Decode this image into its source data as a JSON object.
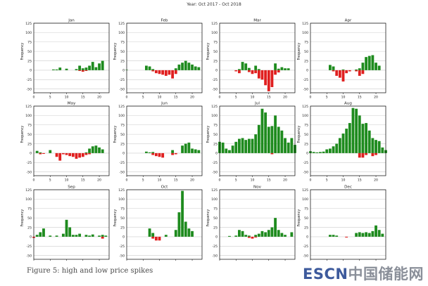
{
  "suptitle": "Year: Oct 2017 - Oct 2018",
  "caption": "Figure 5: high and low price spikes",
  "watermark": {
    "latin": "ESCN",
    "cjk": "中国储能网"
  },
  "colors": {
    "high": "#1e8b1e",
    "low": "#e01f1f",
    "grid": "#cccccc",
    "axis": "#000000"
  },
  "chart_data": [
    {
      "type": "bar",
      "title": "Jan",
      "ylabel": "Frequency",
      "xlabel": "",
      "xlim": [
        0,
        23
      ],
      "ylim": [
        -60,
        125
      ],
      "xticks": [
        0,
        5,
        10,
        15,
        20
      ],
      "yticks": [
        125,
        100,
        75,
        50,
        25,
        0,
        -25,
        -50
      ],
      "series": [
        {
          "name": "high",
          "x": [
            6,
            7,
            8,
            10,
            13,
            14,
            15,
            16,
            17,
            18,
            19,
            20,
            21
          ],
          "values": [
            2,
            2,
            7,
            4,
            3,
            12,
            5,
            7,
            12,
            22,
            8,
            18,
            25
          ]
        },
        {
          "name": "low",
          "x": [
            14,
            15,
            16
          ],
          "values": [
            -2,
            -4,
            -2
          ]
        }
      ]
    },
    {
      "type": "bar",
      "title": "Feb",
      "ylabel": "Frequency",
      "xlabel": "",
      "xlim": [
        0,
        23
      ],
      "ylim": [
        -60,
        125
      ],
      "xticks": [
        0,
        5,
        10,
        15,
        20
      ],
      "yticks": [
        125,
        100,
        75,
        50,
        25,
        0,
        -25,
        -50
      ],
      "series": [
        {
          "name": "high",
          "x": [
            0,
            6,
            7,
            8,
            15,
            16,
            17,
            18,
            19,
            20,
            21,
            22
          ],
          "values": [
            1,
            12,
            10,
            3,
            5,
            15,
            20,
            25,
            20,
            15,
            10,
            8
          ]
        },
        {
          "name": "low",
          "x": [
            8,
            9,
            10,
            11,
            12,
            13,
            14,
            15
          ],
          "values": [
            -3,
            -8,
            -10,
            -12,
            -15,
            -12,
            -22,
            -10
          ]
        }
      ]
    },
    {
      "type": "bar",
      "title": "Mar",
      "ylabel": "Frequency",
      "xlabel": "",
      "xlim": [
        0,
        23
      ],
      "ylim": [
        -60,
        125
      ],
      "xticks": [
        0,
        5,
        10,
        15,
        20
      ],
      "yticks": [
        125,
        100,
        75,
        50,
        25,
        0,
        -25,
        -50
      ],
      "series": [
        {
          "name": "high",
          "x": [
            6,
            7,
            8,
            9,
            11,
            12,
            17,
            18,
            19,
            20,
            21
          ],
          "values": [
            3,
            22,
            18,
            6,
            12,
            3,
            18,
            4,
            8,
            5,
            5
          ]
        },
        {
          "name": "low",
          "x": [
            5,
            6,
            9,
            10,
            11,
            12,
            13,
            14,
            15,
            16,
            17,
            18
          ],
          "values": [
            -3,
            -8,
            -5,
            -10,
            -8,
            -22,
            -25,
            -40,
            -56,
            -45,
            -12,
            -6
          ]
        }
      ]
    },
    {
      "type": "bar",
      "title": "Apr",
      "ylabel": "Frequency",
      "xlabel": "",
      "xlim": [
        0,
        23
      ],
      "ylim": [
        -60,
        125
      ],
      "xticks": [
        0,
        5,
        10,
        15,
        20
      ],
      "yticks": [
        125,
        100,
        75,
        50,
        25,
        0,
        -25,
        -50
      ],
      "series": [
        {
          "name": "high",
          "x": [
            6,
            7,
            10,
            14,
            15,
            16,
            17,
            18,
            19,
            20,
            21
          ],
          "values": [
            14,
            10,
            2,
            2,
            5,
            20,
            35,
            38,
            40,
            20,
            12
          ]
        },
        {
          "name": "low",
          "x": [
            7,
            8,
            9,
            10,
            11,
            12,
            14,
            15,
            16
          ],
          "values": [
            -3,
            -15,
            -20,
            -30,
            -8,
            -3,
            -3,
            -15,
            -10
          ]
        }
      ]
    },
    {
      "type": "bar",
      "title": "May",
      "ylabel": "Frequency",
      "xlabel": "",
      "xlim": [
        0,
        23
      ],
      "ylim": [
        -60,
        125
      ],
      "xticks": [
        0,
        5,
        10,
        15,
        20
      ],
      "yticks": [
        125,
        100,
        75,
        50,
        25,
        0,
        -25,
        -50
      ],
      "series": [
        {
          "name": "high",
          "x": [
            1,
            2,
            5,
            16,
            17,
            18,
            19,
            20,
            21
          ],
          "values": [
            6,
            2,
            8,
            2,
            12,
            18,
            20,
            15,
            10
          ]
        },
        {
          "name": "low",
          "x": [
            2,
            3,
            7,
            8,
            9,
            10,
            11,
            12,
            13,
            14,
            15,
            16,
            17
          ],
          "values": [
            -3,
            -2,
            -10,
            -20,
            -3,
            -5,
            -8,
            -10,
            -15,
            -12,
            -10,
            -5,
            -3
          ]
        }
      ]
    },
    {
      "type": "bar",
      "title": "Jun",
      "ylabel": "Frequency",
      "xlabel": "",
      "xlim": [
        0,
        23
      ],
      "ylim": [
        -60,
        125
      ],
      "xticks": [
        0,
        5,
        10,
        15,
        20
      ],
      "yticks": [
        125,
        100,
        75,
        50,
        25,
        0,
        -25,
        -50
      ],
      "series": [
        {
          "name": "high",
          "x": [
            6,
            7,
            8,
            14,
            17,
            18,
            19,
            20,
            21,
            22
          ],
          "values": [
            4,
            2,
            3,
            8,
            20,
            25,
            28,
            12,
            10,
            8
          ]
        },
        {
          "name": "low",
          "x": [
            8,
            9,
            10,
            11,
            14,
            15
          ],
          "values": [
            -5,
            -8,
            -10,
            -12,
            -5,
            -3
          ]
        }
      ]
    },
    {
      "type": "bar",
      "title": "Jul",
      "ylabel": "Frequency",
      "xlabel": "",
      "xlim": [
        0,
        23
      ],
      "ylim": [
        -60,
        125
      ],
      "xticks": [
        0,
        5,
        10,
        15,
        20
      ],
      "yticks": [
        125,
        100,
        75,
        50,
        25,
        0,
        -25,
        -50
      ],
      "series": [
        {
          "name": "high",
          "x": [
            0,
            1,
            2,
            3,
            4,
            5,
            6,
            7,
            8,
            9,
            10,
            11,
            12,
            13,
            14,
            15,
            16,
            17,
            18,
            19,
            20,
            21,
            22,
            23
          ],
          "values": [
            30,
            28,
            12,
            8,
            20,
            30,
            38,
            40,
            35,
            38,
            38,
            50,
            75,
            118,
            108,
            70,
            72,
            100,
            70,
            60,
            40,
            28,
            40,
            22
          ]
        },
        {
          "name": "low",
          "x": [
            16
          ],
          "values": [
            -3
          ]
        }
      ]
    },
    {
      "type": "bar",
      "title": "Aug",
      "ylabel": "Frequency",
      "xlabel": "",
      "xlim": [
        0,
        23
      ],
      "ylim": [
        -60,
        125
      ],
      "xticks": [
        0,
        5,
        10,
        15,
        20
      ],
      "yticks": [
        125,
        100,
        75,
        50,
        25,
        0,
        -25,
        -50
      ],
      "series": [
        {
          "name": "high",
          "x": [
            0,
            1,
            2,
            3,
            4,
            5,
            6,
            7,
            8,
            9,
            10,
            11,
            12,
            13,
            14,
            15,
            16,
            17,
            18,
            19,
            20,
            21,
            22,
            23
          ],
          "values": [
            5,
            3,
            2,
            3,
            4,
            10,
            12,
            18,
            25,
            40,
            52,
            65,
            80,
            120,
            118,
            100,
            78,
            80,
            60,
            40,
            35,
            32,
            15,
            8
          ]
        },
        {
          "name": "low",
          "x": [
            15,
            16,
            17,
            19,
            20
          ],
          "values": [
            -12,
            -12,
            -5,
            -8,
            -5
          ]
        }
      ]
    },
    {
      "type": "bar",
      "title": "Sep",
      "ylabel": "Frequency",
      "xlabel": "",
      "xlim": [
        0,
        23
      ],
      "ylim": [
        -60,
        125
      ],
      "xticks": [
        0,
        5,
        10,
        15,
        20
      ],
      "yticks": [
        125,
        100,
        75,
        50,
        25,
        0,
        -25,
        -50
      ],
      "series": [
        {
          "name": "high",
          "x": [
            1,
            2,
            3,
            5,
            7,
            9,
            10,
            11,
            12,
            13,
            14,
            16,
            17,
            18,
            20,
            21,
            22
          ],
          "values": [
            5,
            12,
            22,
            3,
            3,
            8,
            45,
            25,
            5,
            5,
            8,
            5,
            3,
            6,
            3,
            5,
            3
          ]
        },
        {
          "name": "low",
          "x": [
            0,
            21
          ],
          "values": [
            -3,
            -5
          ]
        }
      ]
    },
    {
      "type": "bar",
      "title": "Oct",
      "ylabel": "Frequency",
      "xlabel": "",
      "xlim": [
        0,
        23
      ],
      "ylim": [
        -60,
        125
      ],
      "xticks": [
        0,
        5,
        10,
        15,
        20
      ],
      "yticks": [
        125,
        100,
        75,
        50,
        25,
        0,
        -25,
        -50
      ],
      "series": [
        {
          "name": "high",
          "x": [
            7,
            8,
            12,
            15,
            16,
            17,
            18,
            19,
            20
          ],
          "values": [
            22,
            10,
            5,
            18,
            65,
            122,
            40,
            22,
            15
          ]
        },
        {
          "name": "low",
          "x": [
            8,
            9,
            10
          ],
          "values": [
            -5,
            -10,
            -10
          ]
        }
      ]
    },
    {
      "type": "bar",
      "title": "Nov",
      "ylabel": "Frequency",
      "xlabel": "",
      "xlim": [
        0,
        23
      ],
      "ylim": [
        -60,
        125
      ],
      "xticks": [
        0,
        5,
        10,
        15,
        20
      ],
      "yticks": [
        125,
        100,
        75,
        50,
        25,
        0,
        -25,
        -50
      ],
      "series": [
        {
          "name": "high",
          "x": [
            3,
            5,
            6,
            7,
            8,
            9,
            11,
            12,
            13,
            14,
            15,
            16,
            17,
            18,
            19,
            20,
            22
          ],
          "values": [
            2,
            3,
            18,
            15,
            5,
            3,
            5,
            8,
            15,
            12,
            18,
            25,
            50,
            18,
            10,
            5,
            12
          ]
        },
        {
          "name": "low",
          "x": [
            9,
            10,
            11
          ],
          "values": [
            -3,
            -5,
            -2
          ]
        }
      ]
    },
    {
      "type": "bar",
      "title": "Dec",
      "ylabel": "Frequency",
      "xlabel": "",
      "xlim": [
        0,
        23
      ],
      "ylim": [
        -60,
        125
      ],
      "xticks": [
        0,
        5,
        10,
        15,
        20
      ],
      "yticks": [
        125,
        100,
        75,
        50,
        25,
        0,
        -25,
        -50
      ],
      "series": [
        {
          "name": "high",
          "x": [
            6,
            7,
            8,
            14,
            15,
            16,
            17,
            18,
            19,
            20,
            21,
            22
          ],
          "values": [
            5,
            5,
            3,
            10,
            12,
            10,
            12,
            10,
            15,
            30,
            18,
            8
          ]
        },
        {
          "name": "low",
          "x": [
            11
          ],
          "values": [
            -2
          ]
        }
      ]
    }
  ]
}
